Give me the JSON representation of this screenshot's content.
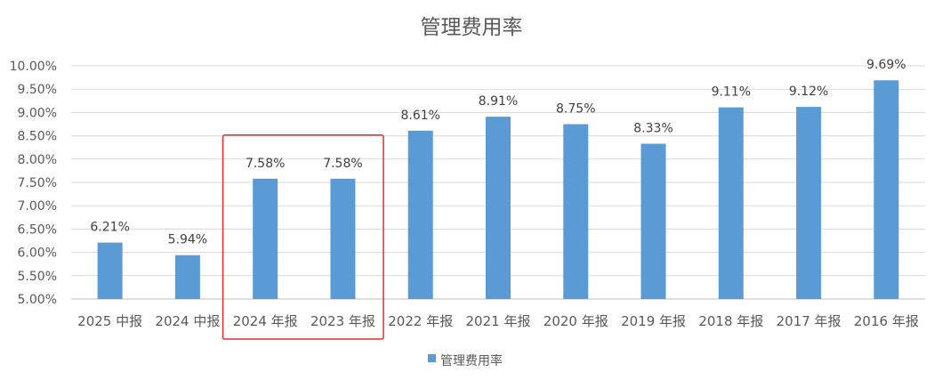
{
  "chart_data": {
    "type": "bar",
    "title": "管理费用率",
    "categories": [
      "2025 中报",
      "2024 中报",
      "2024 年报",
      "2023 年报",
      "2022 年报",
      "2021 年报",
      "2020 年报",
      "2019 年报",
      "2018 年报",
      "2017 年报",
      "2016 年报"
    ],
    "series": [
      {
        "name": "管理费用率",
        "values": [
          6.21,
          5.94,
          7.58,
          7.58,
          8.61,
          8.91,
          8.75,
          8.33,
          9.11,
          9.12,
          9.69
        ],
        "labels": [
          "6.21%",
          "5.94%",
          "7.58%",
          "7.58%",
          "8.61%",
          "8.91%",
          "8.75%",
          "8.33%",
          "9.11%",
          "9.12%",
          "9.69%"
        ]
      }
    ],
    "ylim": [
      5.0,
      10.0
    ],
    "yticks": [
      5.0,
      5.5,
      6.0,
      6.5,
      7.0,
      7.5,
      8.0,
      8.5,
      9.0,
      9.5,
      10.0
    ],
    "ytick_labels": [
      "5.00%",
      "5.50%",
      "6.00%",
      "6.50%",
      "7.00%",
      "7.50%",
      "8.00%",
      "8.50%",
      "9.00%",
      "9.50%",
      "10.00%"
    ],
    "xlabel": "",
    "ylabel": "",
    "grid": true,
    "legend_position": "bottom",
    "highlight": {
      "categories": [
        "2024 年报",
        "2023 年报"
      ],
      "color": "#e03030"
    },
    "colors": {
      "bar": "#5b9bd5",
      "grid": "#d9d9d9",
      "axis": "#bfbfbf"
    }
  }
}
